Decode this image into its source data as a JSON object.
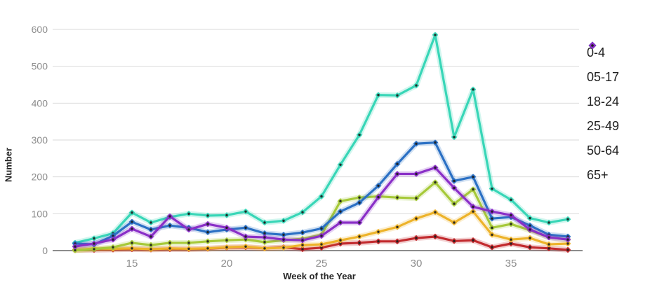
{
  "chart_data": {
    "type": "line",
    "title": "",
    "xlabel": "Week of the Year",
    "ylabel": "Number",
    "x": [
      12,
      13,
      14,
      15,
      16,
      17,
      18,
      19,
      20,
      21,
      22,
      23,
      24,
      25,
      26,
      27,
      28,
      29,
      30,
      31,
      32,
      33,
      34,
      35,
      36,
      37,
      38
    ],
    "xticks": [
      15,
      20,
      25,
      30,
      35
    ],
    "yticks": [
      0,
      100,
      200,
      300,
      400,
      500,
      600
    ],
    "ylim": [
      0,
      600
    ],
    "xlim": [
      10.8,
      38.6
    ],
    "grid": "horizontal",
    "legend_position": "right",
    "marker": "diamond-with-dark-center",
    "series": [
      {
        "name": "0-4",
        "color": "#c22a2e",
        "values": [
          2,
          2,
          3,
          4,
          3,
          4,
          4,
          5,
          8,
          9,
          6,
          9,
          4,
          8,
          19,
          21,
          25,
          25,
          34,
          38,
          26,
          28,
          9,
          19,
          9,
          6,
          2
        ]
      },
      {
        "name": "05-17",
        "color": "#edb32a",
        "values": [
          1,
          6,
          5,
          6,
          4,
          6,
          5,
          6,
          9,
          11,
          6,
          8,
          15,
          17,
          28,
          38,
          51,
          64,
          87,
          104,
          76,
          106,
          43,
          30,
          34,
          17,
          19
        ]
      },
      {
        "name": "18-24",
        "color": "#a6c939",
        "values": [
          1,
          4,
          9,
          21,
          15,
          21,
          21,
          25,
          28,
          30,
          23,
          28,
          32,
          43,
          134,
          144,
          147,
          144,
          142,
          185,
          127,
          166,
          62,
          72,
          55,
          36,
          30
        ]
      },
      {
        "name": "25-49",
        "color": "#38d6b7",
        "values": [
          21,
          33,
          47,
          103,
          76,
          91,
          100,
          95,
          96,
          106,
          76,
          81,
          104,
          147,
          233,
          314,
          422,
          421,
          448,
          585,
          308,
          437,
          168,
          138,
          88,
          76,
          85
        ]
      },
      {
        "name": "50-64",
        "color": "#2b70c4",
        "values": [
          19,
          17,
          40,
          78,
          57,
          68,
          62,
          50,
          57,
          62,
          47,
          43,
          49,
          60,
          106,
          130,
          176,
          235,
          290,
          293,
          189,
          200,
          87,
          91,
          68,
          43,
          38
        ]
      },
      {
        "name": "65+",
        "color": "#8a2fc7",
        "values": [
          11,
          19,
          30,
          59,
          38,
          93,
          57,
          72,
          62,
          38,
          36,
          30,
          28,
          40,
          76,
          76,
          145,
          208,
          208,
          225,
          170,
          119,
          106,
          96,
          57,
          36,
          30
        ]
      }
    ]
  },
  "colors": {
    "background": "#ffffff",
    "gridline": "#d9d9d9",
    "zero_line": "#8c8c8c",
    "tick_label": "#8c8c8c",
    "axis_title": "#262626",
    "legend_text": "#1f1f1f",
    "marker_center": "#1c1c1c"
  }
}
